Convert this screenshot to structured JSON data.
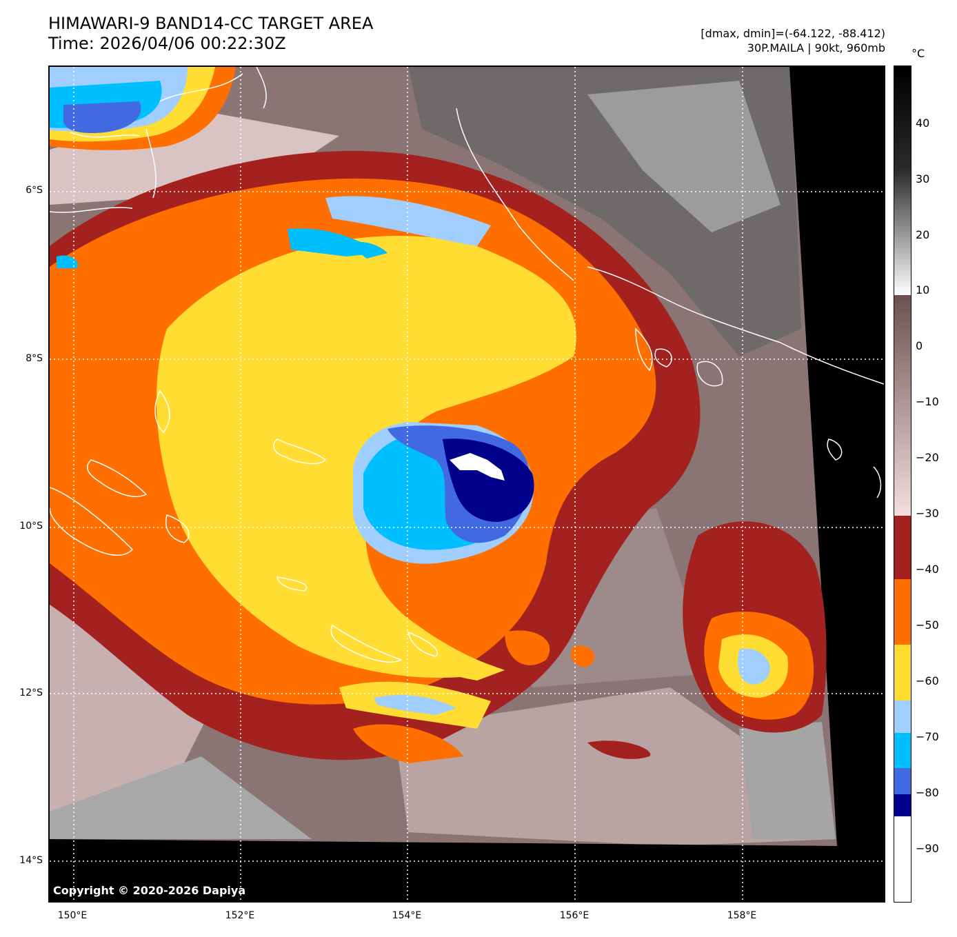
{
  "header": {
    "title_line1": "HIMAWARI-9 BAND14-CC TARGET AREA",
    "title_line2": "Time: 2026/04/06 00:22:30Z",
    "meta_line1": "[dmax, dmin]=(-64.122, -88.412)",
    "meta_line2": "30P.MAILA | 90kt, 960mb"
  },
  "map": {
    "copyright": "Copyright © 2020-2026 Dapiya",
    "lat_labels": [
      "6°S",
      "8°S",
      "10°S",
      "12°S",
      "14°S"
    ],
    "lon_labels": [
      "150°E",
      "152°E",
      "154°E",
      "156°E",
      "158°E"
    ],
    "storm_name": "30P.MAILA",
    "colors": {
      "ocean_gray": "#8f7b7b",
      "warm_cloud": "#d9c3c3",
      "band_brown": "#a3221f",
      "band_orange": "#ff6f00",
      "band_yellow": "#ffdd33",
      "band_lightblue": "#a0cfff",
      "band_cyan": "#00bfff",
      "band_blue": "#4169e1",
      "band_navy": "#00008b",
      "coastline": "#ffffff"
    }
  },
  "colorbar": {
    "unit": "°C",
    "ticks": [
      "40",
      "30",
      "20",
      "10",
      "0",
      "−10",
      "−20",
      "−30",
      "−40",
      "−50",
      "−60",
      "−70",
      "−80",
      "−90"
    ]
  }
}
